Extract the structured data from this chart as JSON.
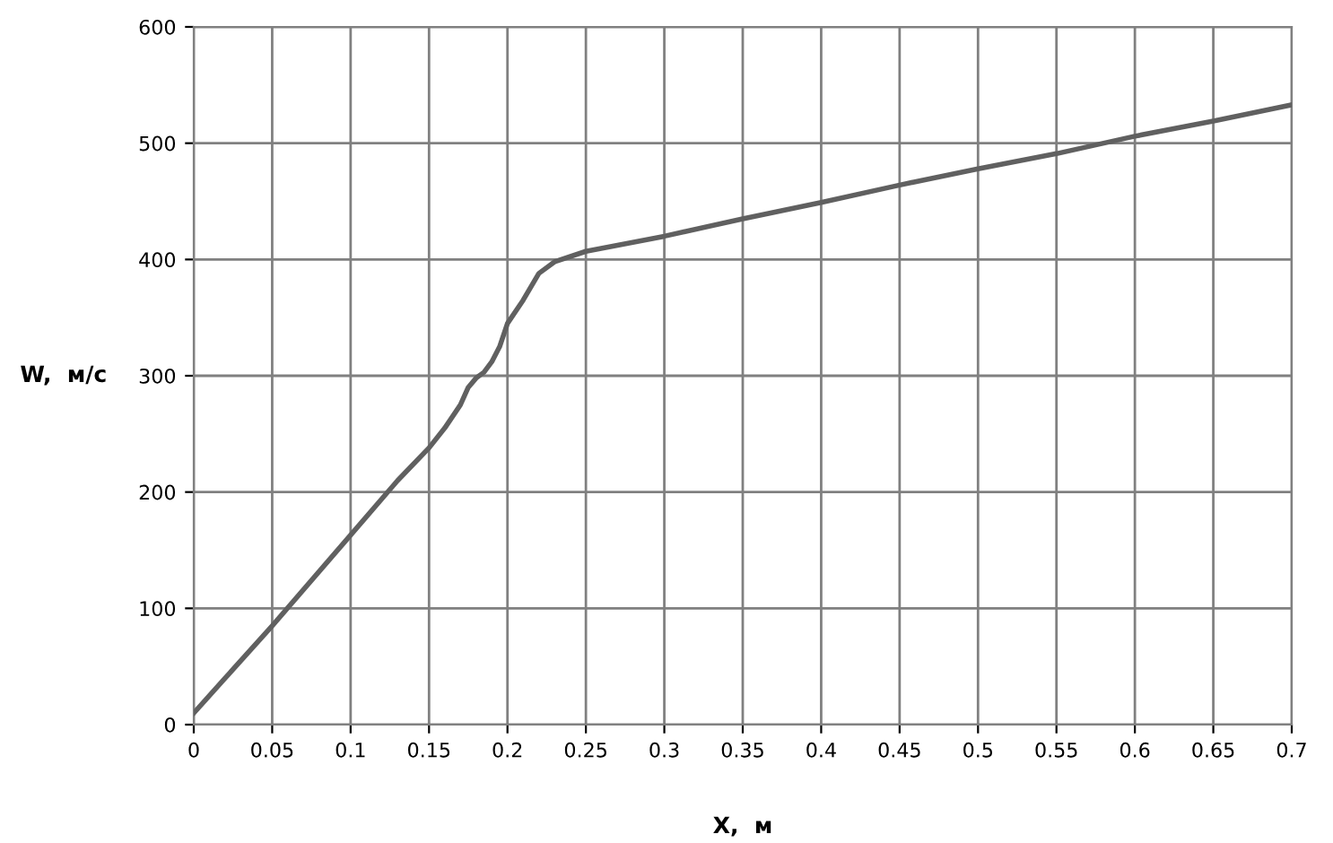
{
  "chart_data": {
    "type": "line",
    "xlabel": "X,  м",
    "ylabel": "W,  м/с",
    "xlim": [
      0,
      0.7
    ],
    "xticks": [
      0,
      0.05,
      0.1,
      0.15,
      0.2,
      0.25,
      0.3,
      0.35,
      0.4,
      0.45,
      0.5,
      0.55,
      0.6,
      0.65,
      0.7
    ],
    "ylim": [
      0,
      600
    ],
    "yticks": [
      0,
      100,
      200,
      300,
      400,
      500,
      600
    ],
    "grid": true,
    "marker": "none",
    "line_style": "solid",
    "series": [
      {
        "color": "#606060",
        "x": [
          0,
          0.01,
          0.02,
          0.05,
          0.1,
          0.13,
          0.15,
          0.16,
          0.17,
          0.175,
          0.18,
          0.185,
          0.19,
          0.195,
          0.2,
          0.21,
          0.22,
          0.23,
          0.25,
          0.3,
          0.35,
          0.4,
          0.45,
          0.5,
          0.55,
          0.6,
          0.65,
          0.7
        ],
        "values": [
          10,
          25,
          40,
          85,
          163,
          210,
          238,
          255,
          275,
          290,
          298,
          303,
          312,
          325,
          345,
          365,
          388,
          398,
          407,
          420,
          435,
          449,
          464,
          478,
          491,
          506,
          519,
          533
        ]
      }
    ]
  }
}
